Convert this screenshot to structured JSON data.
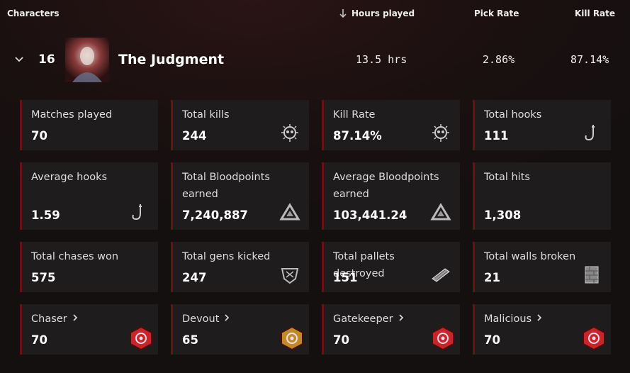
{
  "header": {
    "characters": "Characters",
    "hours_played": "Hours played",
    "pick_rate": "Pick Rate",
    "kill_rate": "Kill Rate"
  },
  "character": {
    "rank": "16",
    "name": "The Judgment",
    "hours": "13.5 hrs",
    "pick_rate": "2.86%",
    "kill_rate": "87.14%"
  },
  "stats": [
    {
      "label": "Matches played",
      "value": "70"
    },
    {
      "label": "Total kills",
      "value": "244"
    },
    {
      "label": "Kill Rate",
      "value": "87.14%"
    },
    {
      "label": "Total hooks",
      "value": "111"
    },
    {
      "label": "Average hooks",
      "value": "1.59"
    },
    {
      "label": "Total Bloodpoints earned",
      "value": "7,240,887"
    },
    {
      "label": "Average Bloodpoints earned",
      "value": "103,441.24"
    },
    {
      "label": "Total hits",
      "value": "1,308"
    },
    {
      "label": "Total chases won",
      "value": "575"
    },
    {
      "label": "Total gens kicked",
      "value": "247"
    },
    {
      "label": "Total pallets destroyed",
      "value": "151"
    },
    {
      "label": "Total walls broken",
      "value": "21"
    }
  ],
  "badges": [
    {
      "label": "Chaser",
      "value": "70"
    },
    {
      "label": "Devout",
      "value": "65"
    },
    {
      "label": "Gatekeeper",
      "value": "70"
    },
    {
      "label": "Malicious",
      "value": "70"
    }
  ]
}
